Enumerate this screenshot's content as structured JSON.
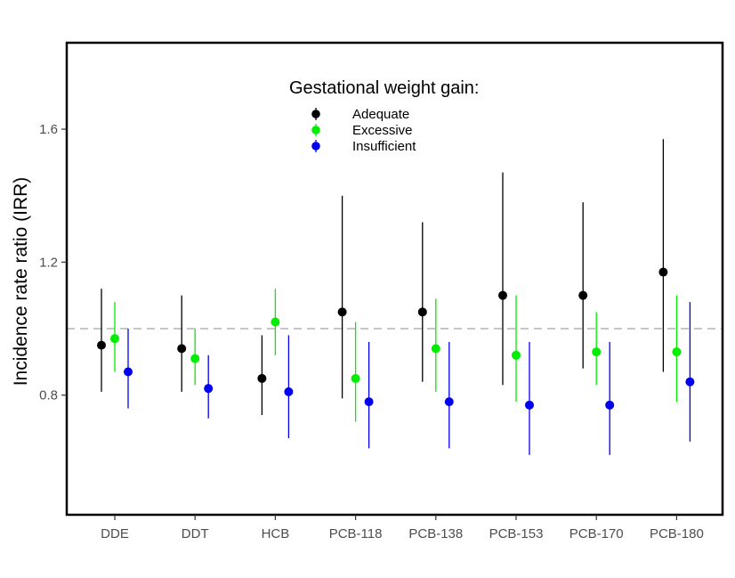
{
  "chart_data": {
    "type": "scatter",
    "ylabel": "Incidence rate ratio (IRR)",
    "xlabel": "",
    "ylim": [
      0.44,
      1.86
    ],
    "yticks": [
      0.8,
      1.2,
      1.6
    ],
    "ytick_labels": [
      "0.8",
      "1.2",
      "1.6"
    ],
    "reference_line": 1.0,
    "grid": false,
    "categories": [
      "DDE",
      "DDT",
      "HCB",
      "PCB-118",
      "PCB-138",
      "PCB-153",
      "PCB-170",
      "PCB-180"
    ],
    "legend": {
      "title": "Gestational weight gain:",
      "placement": "top-center"
    },
    "series": [
      {
        "name": "Adequate",
        "color": "#000000",
        "values": [
          0.95,
          0.94,
          0.85,
          1.05,
          1.05,
          1.1,
          1.1,
          1.17
        ],
        "lower": [
          0.81,
          0.81,
          0.74,
          0.79,
          0.84,
          0.83,
          0.88,
          0.87
        ],
        "upper": [
          1.12,
          1.1,
          0.98,
          1.4,
          1.32,
          1.47,
          1.38,
          1.57
        ]
      },
      {
        "name": "Excessive",
        "color": "#00ee00",
        "values": [
          0.97,
          0.91,
          1.02,
          0.85,
          0.94,
          0.92,
          0.93,
          0.93
        ],
        "lower": [
          0.87,
          0.83,
          0.92,
          0.72,
          0.81,
          0.78,
          0.83,
          0.78
        ],
        "upper": [
          1.08,
          1.0,
          1.12,
          1.02,
          1.09,
          1.1,
          1.05,
          1.1
        ]
      },
      {
        "name": "Insufficient",
        "color": "#0000ee",
        "values": [
          0.87,
          0.82,
          0.81,
          0.78,
          0.78,
          0.77,
          0.77,
          0.84
        ],
        "lower": [
          0.76,
          0.73,
          0.67,
          0.64,
          0.64,
          0.62,
          0.62,
          0.66
        ],
        "upper": [
          1.0,
          0.92,
          0.98,
          0.96,
          0.96,
          0.96,
          0.96,
          1.08
        ]
      }
    ]
  }
}
